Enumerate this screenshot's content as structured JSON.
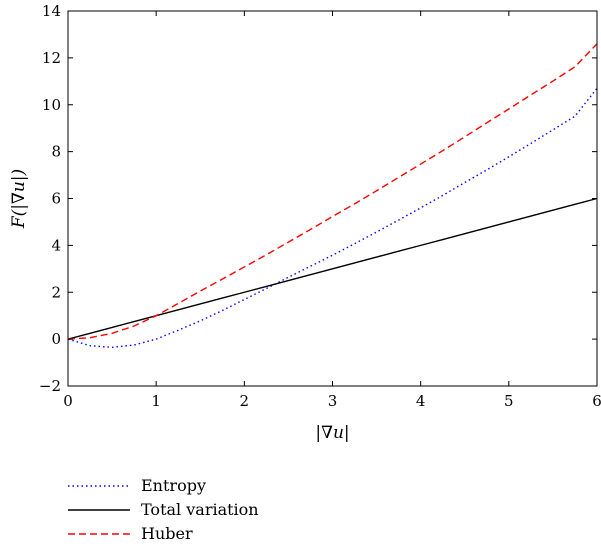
{
  "chart_data": {
    "type": "line",
    "title": "",
    "xlabel": "|∇u|",
    "ylabel": "F(|∇u|)",
    "xlim": [
      0,
      6
    ],
    "ylim": [
      -2,
      14
    ],
    "xticks": [
      0,
      1,
      2,
      3,
      4,
      5,
      6
    ],
    "yticks": [
      -2,
      0,
      2,
      4,
      6,
      8,
      10,
      12,
      14
    ],
    "grid": false,
    "legend_position": "below-left",
    "x": [
      0,
      0.25,
      0.5,
      0.75,
      1,
      1.25,
      1.5,
      1.75,
      2,
      2.25,
      2.5,
      2.75,
      3,
      3.25,
      3.5,
      3.75,
      4,
      4.25,
      4.5,
      4.75,
      5,
      5.25,
      5.5,
      5.75,
      6
    ],
    "series": [
      {
        "name": "Entropy",
        "color": "#0000ff",
        "dash": "dotted",
        "values": [
          0,
          -0.28,
          -0.35,
          -0.25,
          0,
          0.38,
          0.78,
          1.22,
          1.69,
          2.16,
          2.64,
          3.11,
          3.58,
          4.07,
          4.57,
          5.08,
          5.6,
          6.13,
          6.68,
          7.22,
          7.78,
          8.35,
          8.93,
          9.51,
          10.7
        ]
      },
      {
        "name": "Total variation",
        "color": "#000000",
        "dash": "solid",
        "values": [
          0,
          0.25,
          0.5,
          0.75,
          1,
          1.25,
          1.5,
          1.75,
          2,
          2.25,
          2.5,
          2.75,
          3,
          3.25,
          3.5,
          3.75,
          4,
          4.25,
          4.5,
          4.75,
          5,
          5.25,
          5.5,
          5.75,
          6
        ]
      },
      {
        "name": "Huber",
        "color": "#ff0000",
        "dash": "dashed",
        "values": [
          0,
          0.06,
          0.25,
          0.56,
          1,
          1.52,
          2.05,
          2.56,
          3.08,
          3.6,
          4.14,
          4.68,
          5.23,
          5.77,
          6.33,
          6.9,
          7.47,
          8.04,
          8.63,
          9.23,
          9.82,
          10.42,
          11.01,
          11.62,
          12.6
        ]
      }
    ]
  }
}
